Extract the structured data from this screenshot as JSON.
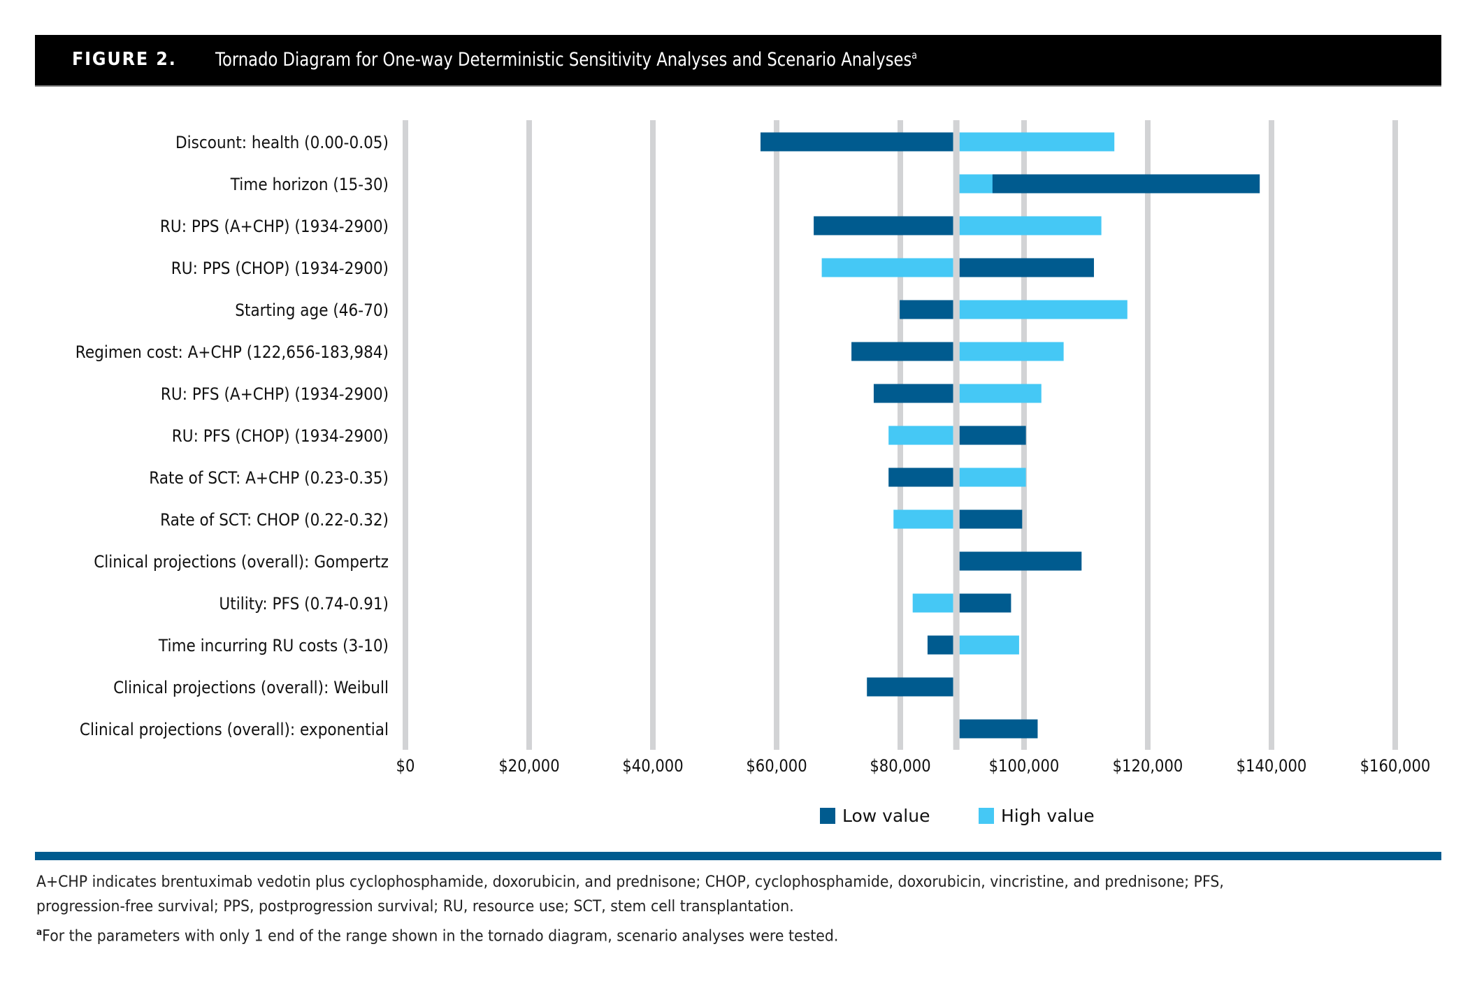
{
  "figure": {
    "label": "FIGURE 2.",
    "title": "Tornado Diagram for One-way Deterministic Sensitivity Analyses and Scenario Analyses",
    "title_superscript": "a"
  },
  "colors": {
    "low": "#005b8f",
    "high": "#45c8f5",
    "grid": "#d2d3d5",
    "rule": "#005b8f"
  },
  "legend": {
    "low_label": "Low value",
    "high_label": "High value"
  },
  "footnotes": {
    "line1": "A+CHP indicates brentuximab vedotin plus cyclophosphamide, doxorubicin, and prednisone; CHOP, cyclophosphamide, doxorubicin, vincristine, and prednisone; PFS,",
    "line2": "progression-free survival; PPS, postprogression survival; RU, resource use; SCT, stem cell transplantation.",
    "note_marker": "a",
    "note": "For the parameters with only 1 end of the range shown in the tornado diagram, scenario analyses were tested."
  },
  "chart_data": {
    "type": "bar",
    "subtype": "tornado",
    "orientation": "horizontal",
    "title": "Tornado Diagram for One-way Deterministic Sensitivity Analyses and Scenario Analyses",
    "xlabel": "",
    "ylabel": "",
    "xlim": [
      0,
      160000
    ],
    "base_value": 89000,
    "grid": true,
    "legend_position": "bottom",
    "x_ticks": [
      0,
      20000,
      40000,
      60000,
      80000,
      100000,
      120000,
      140000,
      160000
    ],
    "x_tick_labels": [
      "$0",
      "$20,000",
      "$40,000",
      "$60,000",
      "$80,000",
      "$100,000",
      "$120,000",
      "$140,000",
      "$160,000"
    ],
    "categories": [
      "Discount: health (0.00-0.05)",
      "Time horizon (15-30)",
      "RU: PPS (A+CHP) (1934-2900)",
      "RU: PPS (CHOP) (1934-2900)",
      "Starting age (46-70)",
      "Regimen cost: A+CHP (122,656-183,984)",
      "RU: PFS (A+CHP) (1934-2900)",
      "RU: PFS (CHOP) (1934-2900)",
      "Rate of SCT: A+CHP (0.23-0.35)",
      "Rate of SCT: CHOP (0.22-0.32)",
      "Clinical projections (overall): Gompertz",
      "Utility: PFS (0.74-0.91)",
      "Time incurring RU costs (3-10)",
      "Clinical projections (overall): Weibull",
      "Clinical projections (overall): exponential"
    ],
    "series": [
      {
        "name": "Low value",
        "values": [
          57400,
          138100,
          66000,
          111300,
          79900,
          72100,
          75700,
          100300,
          78100,
          99700,
          109300,
          97900,
          84400,
          74600,
          102200
        ]
      },
      {
        "name": "High value",
        "values": [
          114600,
          94900,
          112500,
          67300,
          116700,
          106400,
          102800,
          78100,
          100300,
          78900,
          null,
          82000,
          99200,
          null,
          null
        ]
      }
    ]
  }
}
